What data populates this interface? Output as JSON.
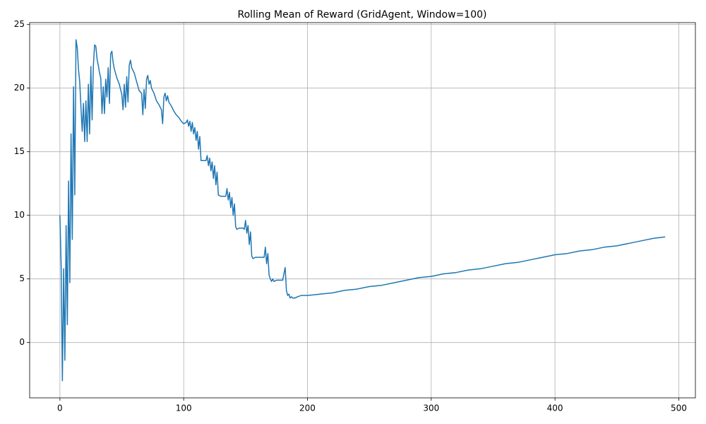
{
  "chart_data": {
    "type": "line",
    "title": "Rolling Mean of Reward (GridAgent, Window=100)",
    "x": [
      0,
      1,
      2,
      3,
      4,
      5,
      6,
      7,
      8,
      9,
      10,
      11,
      12,
      13,
      14,
      15,
      16,
      17,
      18,
      19,
      20,
      21,
      22,
      23,
      24,
      25,
      26,
      27,
      28,
      29,
      30,
      31,
      32,
      33,
      34,
      35,
      36,
      37,
      38,
      39,
      40,
      41,
      42,
      43,
      44,
      46,
      48,
      50,
      51,
      52,
      53,
      54,
      55,
      56,
      57,
      58,
      60,
      62,
      64,
      66,
      67,
      68,
      69,
      70,
      71,
      72,
      73,
      74,
      76,
      78,
      80,
      82,
      83,
      84,
      85,
      86,
      87,
      88,
      90,
      92,
      94,
      96,
      98,
      100,
      102,
      103,
      104,
      105,
      106,
      107,
      108,
      109,
      110,
      111,
      112,
      113,
      114,
      116,
      118,
      119,
      120,
      121,
      122,
      123,
      124,
      125,
      126,
      127,
      128,
      130,
      132,
      134,
      135,
      136,
      137,
      138,
      139,
      140,
      141,
      142,
      143,
      145,
      147,
      148,
      149,
      150,
      151,
      152,
      153,
      154,
      155,
      156,
      158,
      160,
      162,
      164,
      165,
      166,
      167,
      168,
      169,
      170,
      171,
      172,
      173,
      175,
      177,
      180,
      182,
      183,
      184,
      185,
      186,
      187,
      188,
      190,
      192,
      195,
      200,
      210,
      220,
      230,
      240,
      250,
      260,
      270,
      280,
      290,
      300,
      310,
      320,
      330,
      340,
      350,
      360,
      370,
      380,
      390,
      400,
      410,
      420,
      430,
      440,
      450,
      460,
      470,
      480,
      489
    ],
    "values": [
      10.0,
      6,
      -3.0,
      5.8,
      -1.4,
      9.2,
      1.4,
      12.7,
      4.7,
      16.4,
      8.1,
      20.1,
      11.6,
      23.8,
      23.2,
      21.5,
      20.5,
      18.5,
      16.6,
      18.8,
      15.8,
      19.0,
      15.8,
      20.3,
      16.4,
      21.7,
      17.5,
      21.7,
      23.4,
      23.3,
      22.3,
      21.8,
      21.2,
      20.8,
      18.0,
      20.1,
      18.0,
      20.7,
      19.3,
      21.6,
      18.8,
      22.7,
      22.9,
      22.0,
      21.5,
      20.8,
      20.3,
      19.5,
      18.3,
      20.3,
      18.5,
      20.9,
      18.9,
      21.8,
      22.2,
      21.6,
      21.2,
      20.5,
      19.8,
      19.6,
      17.9,
      19.9,
      18.4,
      20.7,
      21.0,
      20.3,
      20.6,
      20.0,
      19.6,
      19.0,
      18.7,
      18.3,
      17.2,
      19.3,
      19.6,
      19.0,
      19.4,
      18.9,
      18.6,
      18.2,
      17.9,
      17.7,
      17.4,
      17.2,
      17.3,
      17.5,
      17.0,
      17.4,
      16.6,
      17.3,
      16.4,
      16.9,
      15.9,
      16.6,
      15.2,
      16.2,
      14.3,
      14.3,
      14.3,
      14.7,
      13.9,
      14.5,
      13.5,
      14.2,
      12.9,
      13.9,
      12.4,
      13.4,
      11.6,
      11.5,
      11.5,
      11.5,
      12.1,
      11.2,
      11.8,
      10.6,
      11.4,
      10.0,
      10.9,
      9.1,
      8.9,
      9.0,
      9.0,
      9.0,
      8.9,
      9.6,
      8.6,
      9.2,
      7.7,
      8.7,
      6.8,
      6.6,
      6.7,
      6.7,
      6.7,
      6.7,
      6.7,
      7.5,
      6.2,
      7.0,
      5.3,
      5.0,
      4.8,
      5.0,
      4.8,
      4.9,
      4.9,
      4.9,
      5.9,
      4.1,
      3.7,
      3.8,
      3.5,
      3.6,
      3.5,
      3.5,
      3.6,
      3.7,
      3.7,
      3.8,
      3.9,
      4.1,
      4.2,
      4.4,
      4.5,
      4.7,
      4.9,
      5.1,
      5.2,
      5.4,
      5.5,
      5.7,
      5.8,
      6.0,
      6.2,
      6.3,
      6.5,
      6.7,
      6.9,
      7.0,
      7.2,
      7.3,
      7.5,
      7.6,
      7.8,
      8.0,
      8.2,
      8.3
    ],
    "color": "#1f77b4",
    "xlim": [
      -24.45,
      513.45
    ],
    "xticks": [
      0,
      100,
      200,
      300,
      400,
      500
    ],
    "ylim": [
      -4.35,
      25.15
    ],
    "yticks": [
      0,
      5,
      10,
      15,
      20,
      25
    ],
    "grid": true
  }
}
